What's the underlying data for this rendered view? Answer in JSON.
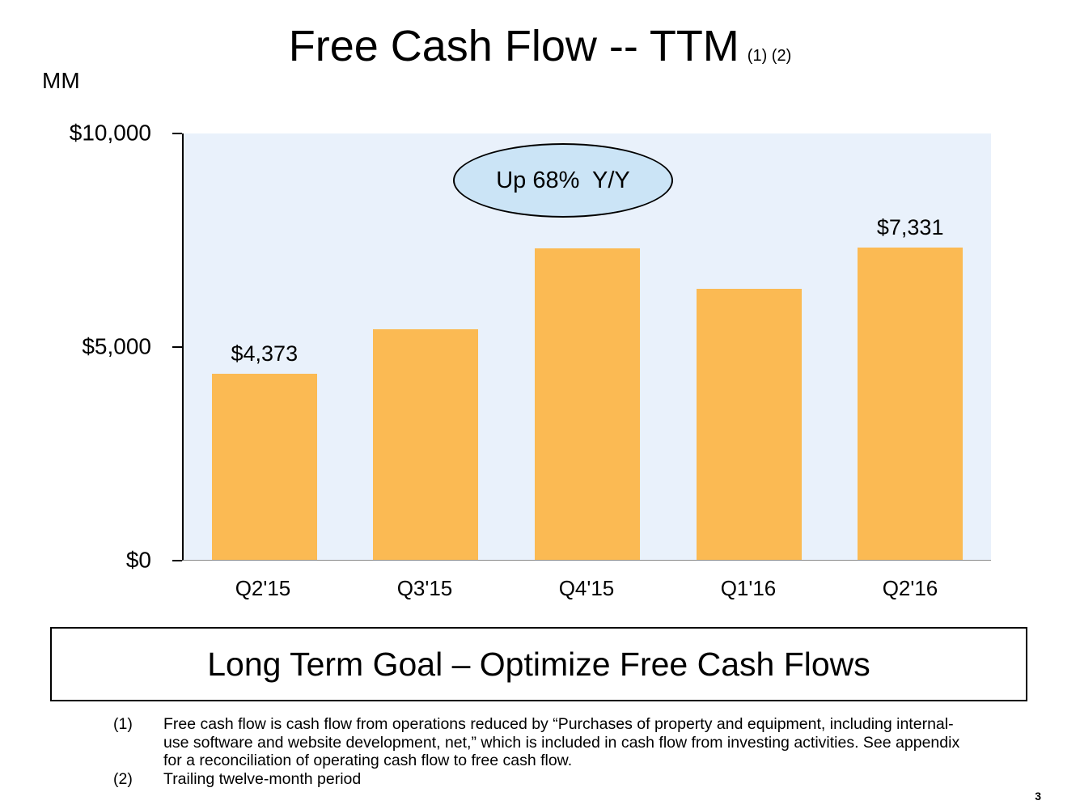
{
  "slide": {
    "title": "Free Cash Flow -- TTM",
    "title_refs": "(1) (2)",
    "units_label": "MM",
    "page_number": "3"
  },
  "chart_data": {
    "type": "bar",
    "title": "Free Cash Flow -- TTM",
    "categories": [
      "Q2'15",
      "Q3'15",
      "Q4'15",
      "Q1'16",
      "Q2'16"
    ],
    "values": [
      4373,
      5400,
      7300,
      6350,
      7331
    ],
    "data_labels": [
      "$4,373",
      null,
      null,
      null,
      "$7,331"
    ],
    "xlabel": "",
    "ylabel": "MM",
    "ylim": [
      0,
      10000
    ],
    "yticks": [
      "$10,000",
      "$5,000",
      "$0"
    ],
    "ytick_values": [
      10000,
      5000,
      0
    ],
    "annotation": "Up 68%  Y/Y",
    "bar_color": "#FBBA53",
    "plot_bg": "#E9F1FB",
    "grid": false,
    "legend": "none"
  },
  "goal_box": {
    "text": "Long Term Goal – Optimize Free Cash Flows"
  },
  "footnotes": [
    {
      "ref": "(1)",
      "text": "Free cash flow is cash flow from operations reduced by “Purchases of property and equipment, including internal-use software and website development, net,” which is included in cash flow from investing activities. See appendix for a reconciliation of operating cash flow to free cash flow."
    },
    {
      "ref": "(2)",
      "text": "Trailing twelve-month period"
    }
  ]
}
